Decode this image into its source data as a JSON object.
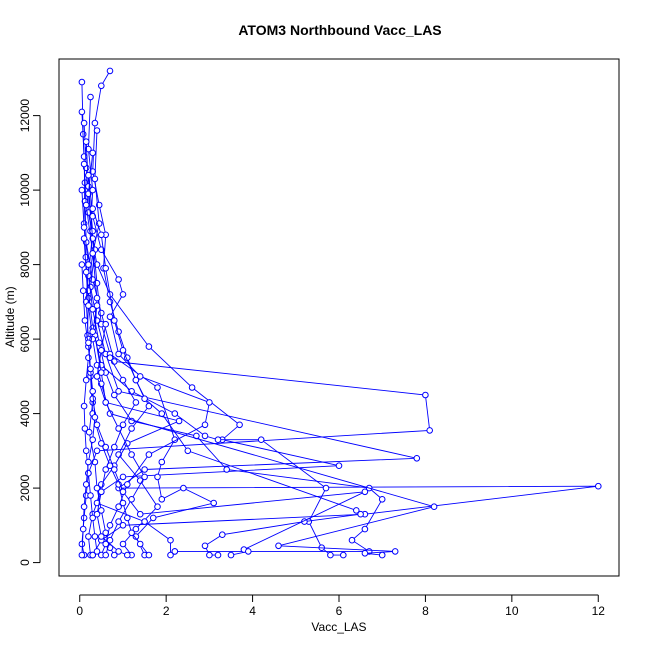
{
  "chart_data": {
    "type": "line",
    "title": "ATOM3 Northbound Vacc_LAS",
    "xlabel": "Vacc_LAS",
    "ylabel": "Altitude (m)",
    "xlim": [
      -0.48,
      12.48
    ],
    "ylim": [
      -360,
      13520
    ],
    "xticks": [
      0,
      2,
      4,
      6,
      8,
      10,
      12
    ],
    "yticks": [
      0,
      2000,
      4000,
      6000,
      8000,
      10000,
      12000
    ],
    "grid": false,
    "legend": "none",
    "marker": "open-circle",
    "colors": {
      "series": "#0000ff",
      "axis": "#000000",
      "background": "#ffffff"
    },
    "series": [
      {
        "points": [
          [
            0.05,
            12900
          ],
          [
            0.08,
            11500
          ],
          [
            0.12,
            10200
          ],
          [
            0.1,
            9100
          ],
          [
            0.14,
            8200
          ],
          [
            0.2,
            7100
          ],
          [
            0.18,
            6100
          ],
          [
            0.25,
            5200
          ],
          [
            0.3,
            4300
          ],
          [
            0.22,
            3500
          ],
          [
            0.35,
            2700
          ],
          [
            0.4,
            2000
          ],
          [
            0.5,
            1400
          ],
          [
            0.6,
            800
          ],
          [
            0.7,
            400
          ],
          [
            0.8,
            200
          ]
        ]
      },
      {
        "points": [
          [
            0.7,
            13200
          ],
          [
            0.5,
            12800
          ],
          [
            0.35,
            11800
          ],
          [
            0.3,
            10500
          ],
          [
            0.45,
            9600
          ],
          [
            0.6,
            8800
          ],
          [
            0.55,
            7900
          ],
          [
            0.7,
            7000
          ],
          [
            0.9,
            6200
          ],
          [
            1.1,
            5500
          ],
          [
            1.3,
            4900
          ],
          [
            1.6,
            4200
          ],
          [
            1.2,
            3600
          ],
          [
            0.9,
            2900
          ],
          [
            1.4,
            2200
          ],
          [
            1.8,
            1500
          ],
          [
            1.3,
            900
          ],
          [
            1.0,
            500
          ],
          [
            1.2,
            200
          ]
        ]
      },
      {
        "points": [
          [
            0.05,
            12100
          ],
          [
            0.1,
            10900
          ],
          [
            0.12,
            9700
          ],
          [
            0.15,
            8600
          ],
          [
            0.3,
            7600
          ],
          [
            0.5,
            6700
          ],
          [
            0.8,
            5400
          ],
          [
            8.0,
            4500
          ],
          [
            8.1,
            3550
          ],
          [
            0.4,
            3000
          ],
          [
            0.2,
            2400
          ],
          [
            0.15,
            1800
          ],
          [
            0.1,
            1200
          ],
          [
            0.05,
            500
          ],
          [
            0.1,
            200
          ]
        ]
      },
      {
        "points": [
          [
            0.25,
            12500
          ],
          [
            0.2,
            11100
          ],
          [
            0.3,
            10000
          ],
          [
            0.25,
            8900
          ],
          [
            0.4,
            8000
          ],
          [
            0.7,
            7200
          ],
          [
            1.6,
            5800
          ],
          [
            2.6,
            4700
          ],
          [
            3.7,
            3700
          ],
          [
            3.3,
            3300
          ],
          [
            6.0,
            2600
          ],
          [
            1.0,
            2300
          ],
          [
            0.5,
            1900
          ],
          [
            0.3,
            1300
          ],
          [
            0.2,
            700
          ],
          [
            0.25,
            200
          ]
        ]
      },
      {
        "points": [
          [
            0.1,
            11800
          ],
          [
            0.15,
            10600
          ],
          [
            0.2,
            9400
          ],
          [
            0.35,
            8400
          ],
          [
            0.25,
            7400
          ],
          [
            0.4,
            6500
          ],
          [
            0.6,
            5600
          ],
          [
            0.9,
            4600
          ],
          [
            7.8,
            2800
          ],
          [
            1.5,
            2500
          ],
          [
            0.9,
            2000
          ],
          [
            12.0,
            2050
          ],
          [
            6.6,
            1300
          ],
          [
            1.0,
            1000
          ],
          [
            0.5,
            600
          ],
          [
            0.3,
            200
          ]
        ]
      },
      {
        "points": [
          [
            0.4,
            11600
          ],
          [
            0.35,
            10300
          ],
          [
            0.45,
            9100
          ],
          [
            0.3,
            8300
          ],
          [
            0.2,
            7300
          ],
          [
            0.3,
            6300
          ],
          [
            0.5,
            5300
          ],
          [
            1.2,
            4600
          ],
          [
            2.2,
            4000
          ],
          [
            2.9,
            3400
          ],
          [
            3.2,
            3300
          ],
          [
            4.2,
            3300
          ],
          [
            5.7,
            2000
          ],
          [
            5.3,
            1100
          ],
          [
            5.6,
            400
          ],
          [
            5.8,
            200
          ],
          [
            6.1,
            200
          ]
        ]
      },
      {
        "points": [
          [
            0.15,
            11300
          ],
          [
            0.2,
            10100
          ],
          [
            0.3,
            8900
          ],
          [
            0.2,
            7700
          ],
          [
            0.3,
            6800
          ],
          [
            0.45,
            5900
          ],
          [
            0.6,
            5100
          ],
          [
            0.8,
            4500
          ],
          [
            1.2,
            3800
          ],
          [
            2.7,
            3400
          ],
          [
            3.4,
            2500
          ],
          [
            6.7,
            2000
          ],
          [
            7.0,
            1700
          ],
          [
            6.6,
            900
          ],
          [
            6.3,
            600
          ],
          [
            6.7,
            300
          ],
          [
            2.2,
            300
          ]
        ]
      },
      {
        "points": [
          [
            0.3,
            11000
          ],
          [
            0.2,
            9900
          ],
          [
            0.3,
            8700
          ],
          [
            0.4,
            7500
          ],
          [
            0.5,
            6400
          ],
          [
            0.7,
            5600
          ],
          [
            1.8,
            4700
          ],
          [
            2.2,
            3300
          ],
          [
            1.9,
            2700
          ],
          [
            1.8,
            2300
          ],
          [
            1.9,
            1700
          ],
          [
            2.4,
            2000
          ],
          [
            3.1,
            1600
          ],
          [
            1.7,
            1200
          ],
          [
            1.3,
            700
          ],
          [
            1.5,
            200
          ]
        ]
      },
      {
        "points": [
          [
            0.1,
            10700
          ],
          [
            0.15,
            9600
          ],
          [
            0.3,
            8300
          ],
          [
            0.4,
            7100
          ],
          [
            0.35,
            6100
          ],
          [
            0.5,
            5100
          ],
          [
            0.6,
            4300
          ],
          [
            2.3,
            3800
          ],
          [
            1.1,
            3200
          ],
          [
            0.8,
            2600
          ],
          [
            0.5,
            2100
          ],
          [
            0.4,
            1600
          ],
          [
            1.5,
            1100
          ],
          [
            2.1,
            600
          ],
          [
            2.1,
            200
          ],
          [
            2.2,
            300
          ]
        ]
      },
      {
        "points": [
          [
            0.2,
            10400
          ],
          [
            0.3,
            9300
          ],
          [
            0.5,
            8400
          ],
          [
            0.9,
            7600
          ],
          [
            1.0,
            7200
          ],
          [
            0.7,
            6600
          ],
          [
            0.9,
            5600
          ],
          [
            1.4,
            5000
          ],
          [
            3.0,
            4300
          ],
          [
            2.9,
            3700
          ],
          [
            1.6,
            2900
          ],
          [
            1.1,
            2100
          ],
          [
            0.9,
            1500
          ],
          [
            0.7,
            1000
          ],
          [
            0.6,
            500
          ],
          [
            0.5,
            200
          ]
        ]
      },
      {
        "points": [
          [
            0.05,
            10000
          ],
          [
            0.1,
            9000
          ],
          [
            0.2,
            8000
          ],
          [
            0.15,
            7000
          ],
          [
            0.2,
            6000
          ],
          [
            0.25,
            5000
          ],
          [
            0.3,
            4000
          ],
          [
            0.5,
            3200
          ],
          [
            0.7,
            2600
          ],
          [
            0.9,
            2100
          ],
          [
            1.0,
            1600
          ],
          [
            1.1,
            1200
          ],
          [
            1.2,
            800
          ],
          [
            1.4,
            500
          ],
          [
            1.6,
            200
          ]
        ]
      },
      {
        "points": [
          [
            0.3,
            9500
          ],
          [
            0.5,
            8800
          ],
          [
            0.6,
            7900
          ],
          [
            0.8,
            6500
          ],
          [
            1.0,
            5700
          ],
          [
            1.3,
            4900
          ],
          [
            1.5,
            4400
          ],
          [
            1.9,
            4000
          ],
          [
            2.5,
            3000
          ],
          [
            6.4,
            1400
          ],
          [
            6.5,
            1300
          ],
          [
            5.2,
            1100
          ],
          [
            3.3,
            750
          ],
          [
            2.9,
            450
          ],
          [
            3.0,
            200
          ],
          [
            3.2,
            200
          ]
        ]
      },
      {
        "points": [
          [
            0.1,
            8700
          ],
          [
            0.15,
            7800
          ],
          [
            0.2,
            6900
          ],
          [
            0.3,
            6000
          ],
          [
            0.4,
            5300
          ],
          [
            0.5,
            4800
          ],
          [
            0.7,
            4000
          ],
          [
            8.2,
            1500
          ],
          [
            4.6,
            450
          ],
          [
            7.3,
            300
          ],
          [
            6.6,
            250
          ],
          [
            7.0,
            200
          ]
        ]
      },
      {
        "points": [
          [
            0.05,
            8000
          ],
          [
            0.08,
            7300
          ],
          [
            0.12,
            6500
          ],
          [
            0.2,
            5800
          ],
          [
            0.25,
            5100
          ],
          [
            0.3,
            4400
          ],
          [
            0.4,
            3700
          ],
          [
            0.6,
            3100
          ],
          [
            0.8,
            2500
          ],
          [
            1.0,
            1900
          ],
          [
            1.4,
            1300
          ],
          [
            6.6,
            1900
          ],
          [
            3.8,
            350
          ],
          [
            3.9,
            300
          ],
          [
            3.5,
            200
          ]
        ]
      },
      {
        "points": [
          [
            0.4,
            6900
          ],
          [
            0.3,
            6200
          ],
          [
            0.2,
            5500
          ],
          [
            0.15,
            4900
          ],
          [
            0.1,
            4200
          ],
          [
            0.12,
            3600
          ],
          [
            0.15,
            3000
          ],
          [
            0.2,
            2400
          ],
          [
            0.25,
            1800
          ],
          [
            0.3,
            1200
          ],
          [
            0.35,
            700
          ],
          [
            0.4,
            300
          ],
          [
            0.3,
            200
          ]
        ]
      },
      {
        "points": [
          [
            0.6,
            6400
          ],
          [
            0.5,
            5700
          ],
          [
            0.4,
            5000
          ],
          [
            0.6,
            4300
          ],
          [
            0.9,
            3600
          ],
          [
            1.2,
            2900
          ],
          [
            1.5,
            2300
          ],
          [
            1.2,
            1700
          ],
          [
            0.9,
            1100
          ],
          [
            0.7,
            600
          ],
          [
            0.6,
            200
          ]
        ]
      },
      {
        "points": [
          [
            0.2,
            5900
          ],
          [
            0.25,
            5200
          ],
          [
            0.3,
            4600
          ],
          [
            0.35,
            3900
          ],
          [
            0.3,
            3300
          ],
          [
            0.2,
            2700
          ],
          [
            0.15,
            2100
          ],
          [
            0.1,
            1500
          ],
          [
            0.08,
            900
          ],
          [
            0.05,
            200
          ]
        ]
      },
      {
        "points": [
          [
            0.7,
            5500
          ],
          [
            1.0,
            4900
          ],
          [
            1.3,
            4300
          ],
          [
            1.0,
            3700
          ],
          [
            0.8,
            3100
          ],
          [
            0.6,
            2500
          ],
          [
            0.5,
            1900
          ],
          [
            0.4,
            1300
          ],
          [
            0.5,
            700
          ],
          [
            0.9,
            300
          ],
          [
            1.1,
            200
          ]
        ]
      }
    ]
  }
}
